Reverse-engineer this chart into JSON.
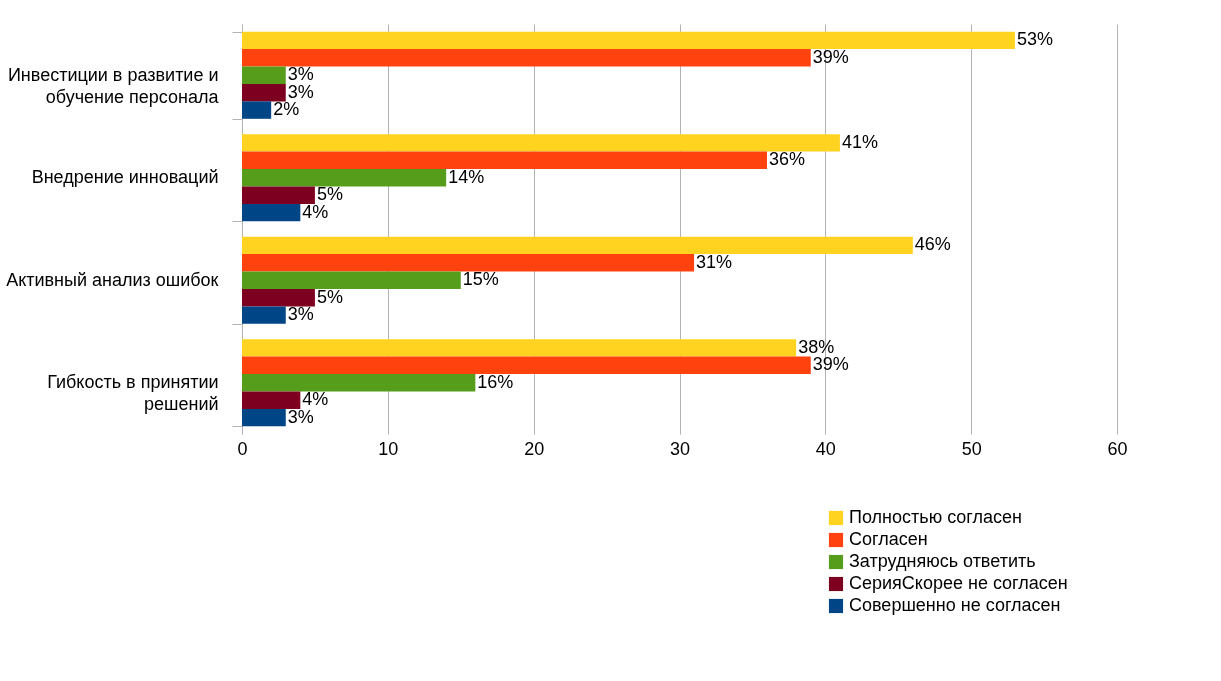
{
  "chart_data": {
    "type": "bar",
    "orientation": "horizontal",
    "categories": [
      "Инвестиции в развитие и обучение персонала",
      "Внедрение инноваций",
      "Активный анализ ошибок",
      "Гибкость в принятии решений"
    ],
    "series": [
      {
        "name": "Полностью согласен",
        "color": "#ffd320",
        "values": [
          53,
          41,
          46,
          38
        ],
        "value_labels": [
          "53%",
          "41%",
          "46%",
          "38%"
        ]
      },
      {
        "name": "Согласен",
        "color": "#ff420e",
        "values": [
          39,
          36,
          31,
          39
        ],
        "value_labels": [
          "39%",
          "36%",
          "31%",
          "39%"
        ]
      },
      {
        "name": "Затрудняюсь ответить",
        "color": "#579d1c",
        "values": [
          3,
          14,
          15,
          16
        ],
        "value_labels": [
          "3%",
          "14%",
          "15%",
          "16%"
        ]
      },
      {
        "name": "СерияСкорее не согласен",
        "color": "#7e0021",
        "values": [
          3,
          5,
          5,
          4
        ],
        "value_labels": [
          "3%",
          "5%",
          "5%",
          "4%"
        ]
      },
      {
        "name": "Совершенно не согласен",
        "color": "#004586",
        "values": [
          2,
          4,
          3,
          3
        ],
        "value_labels": [
          "2%",
          "4%",
          "3%",
          "3%"
        ]
      }
    ],
    "xlim": [
      0,
      60
    ],
    "xticks": [
      0,
      10,
      20,
      30,
      40,
      50,
      60
    ],
    "grid": "x",
    "legend": "bottom right"
  }
}
